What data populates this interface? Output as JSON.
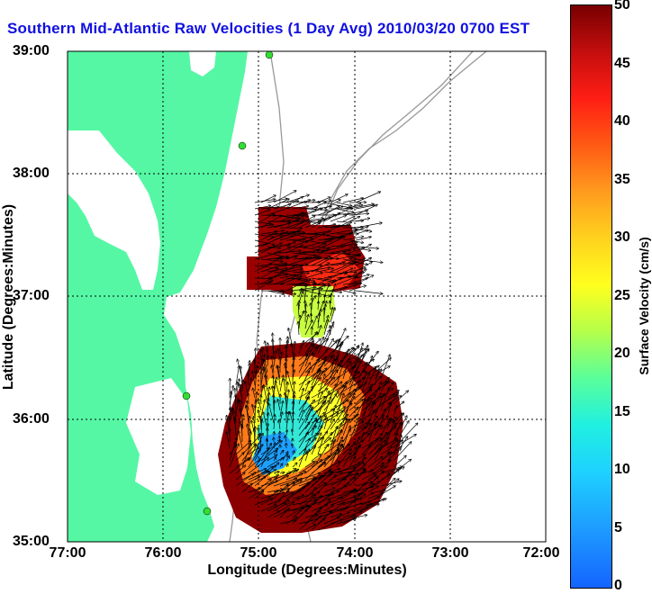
{
  "title": "Southern Mid-Atlantic Raw Velocities (1 Day Avg) 2010/03/20 0700 EST",
  "chart_data": {
    "type": "map",
    "xlabel": "Longitude (Degrees:Minutes)",
    "ylabel": "Latitude (Degrees:Minutes)",
    "x_ticks": [
      "77:00",
      "76:00",
      "75:00",
      "74:00",
      "73:00",
      "72:00"
    ],
    "y_ticks": [
      "39:00",
      "38:00",
      "37:00",
      "36:00",
      "35:00"
    ],
    "lon_range": [
      -77,
      -72
    ],
    "lat_range": [
      35,
      39
    ],
    "grid": true,
    "colorbar": {
      "label": "Surface Velocity (cm/s)",
      "ticks": [
        "50",
        "45",
        "40",
        "35",
        "30",
        "25",
        "20",
        "15",
        "10",
        "5",
        "0"
      ],
      "range": [
        0,
        50
      ]
    },
    "colors": {
      "land": "#55f7a4",
      "title": "#1010e0",
      "station": "#33dd33"
    }
  }
}
